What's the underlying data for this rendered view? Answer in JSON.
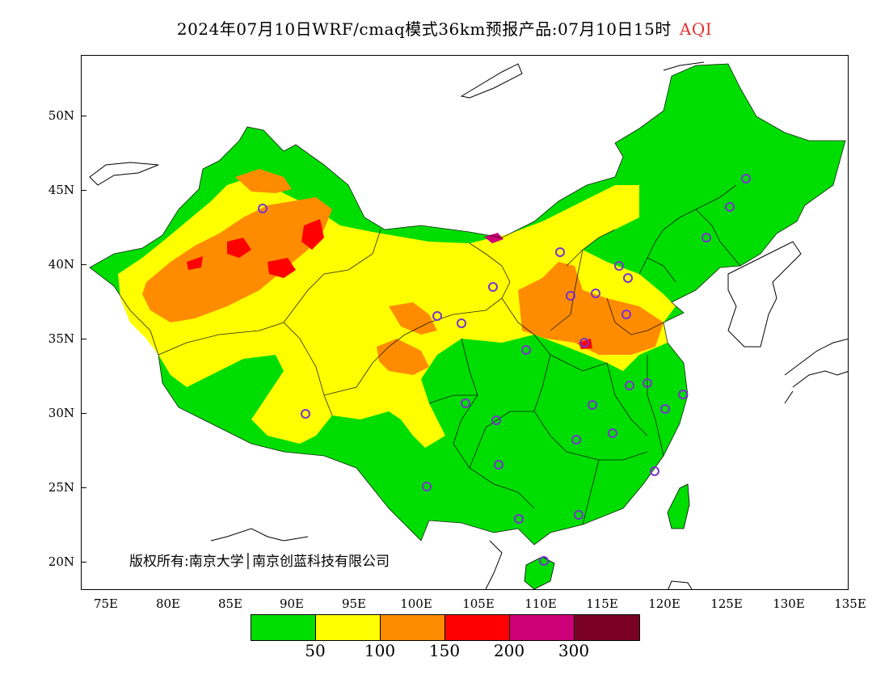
{
  "title": {
    "main": "2024年07月10日WRF/cmaq模式36km预报产品:07月10日15时",
    "product": "AQI"
  },
  "copyright": "版权所有:南京大学│南京创蓝科技有限公司",
  "axes": {
    "lat_labels": [
      "50N",
      "45N",
      "40N",
      "35N",
      "30N",
      "25N",
      "20N"
    ],
    "lon_labels": [
      "75E",
      "80E",
      "85E",
      "90E",
      "95E",
      "100E",
      "105E",
      "110E",
      "115E",
      "120E",
      "125E",
      "130E",
      "135E"
    ]
  },
  "legend": {
    "colors": [
      "#00dd00",
      "#ffff00",
      "#ff8c00",
      "#ff0000",
      "#cc0077",
      "#7a0025"
    ],
    "labels": [
      "50",
      "100",
      "150",
      "200",
      "300"
    ]
  },
  "colors": {
    "good": "#00dd00",
    "moderate": "#ffff00",
    "sensitive": "#ff8c00",
    "unhealthy": "#ff0000",
    "very_unhealthy": "#cc0077",
    "station_marker": "#7a33cc"
  }
}
